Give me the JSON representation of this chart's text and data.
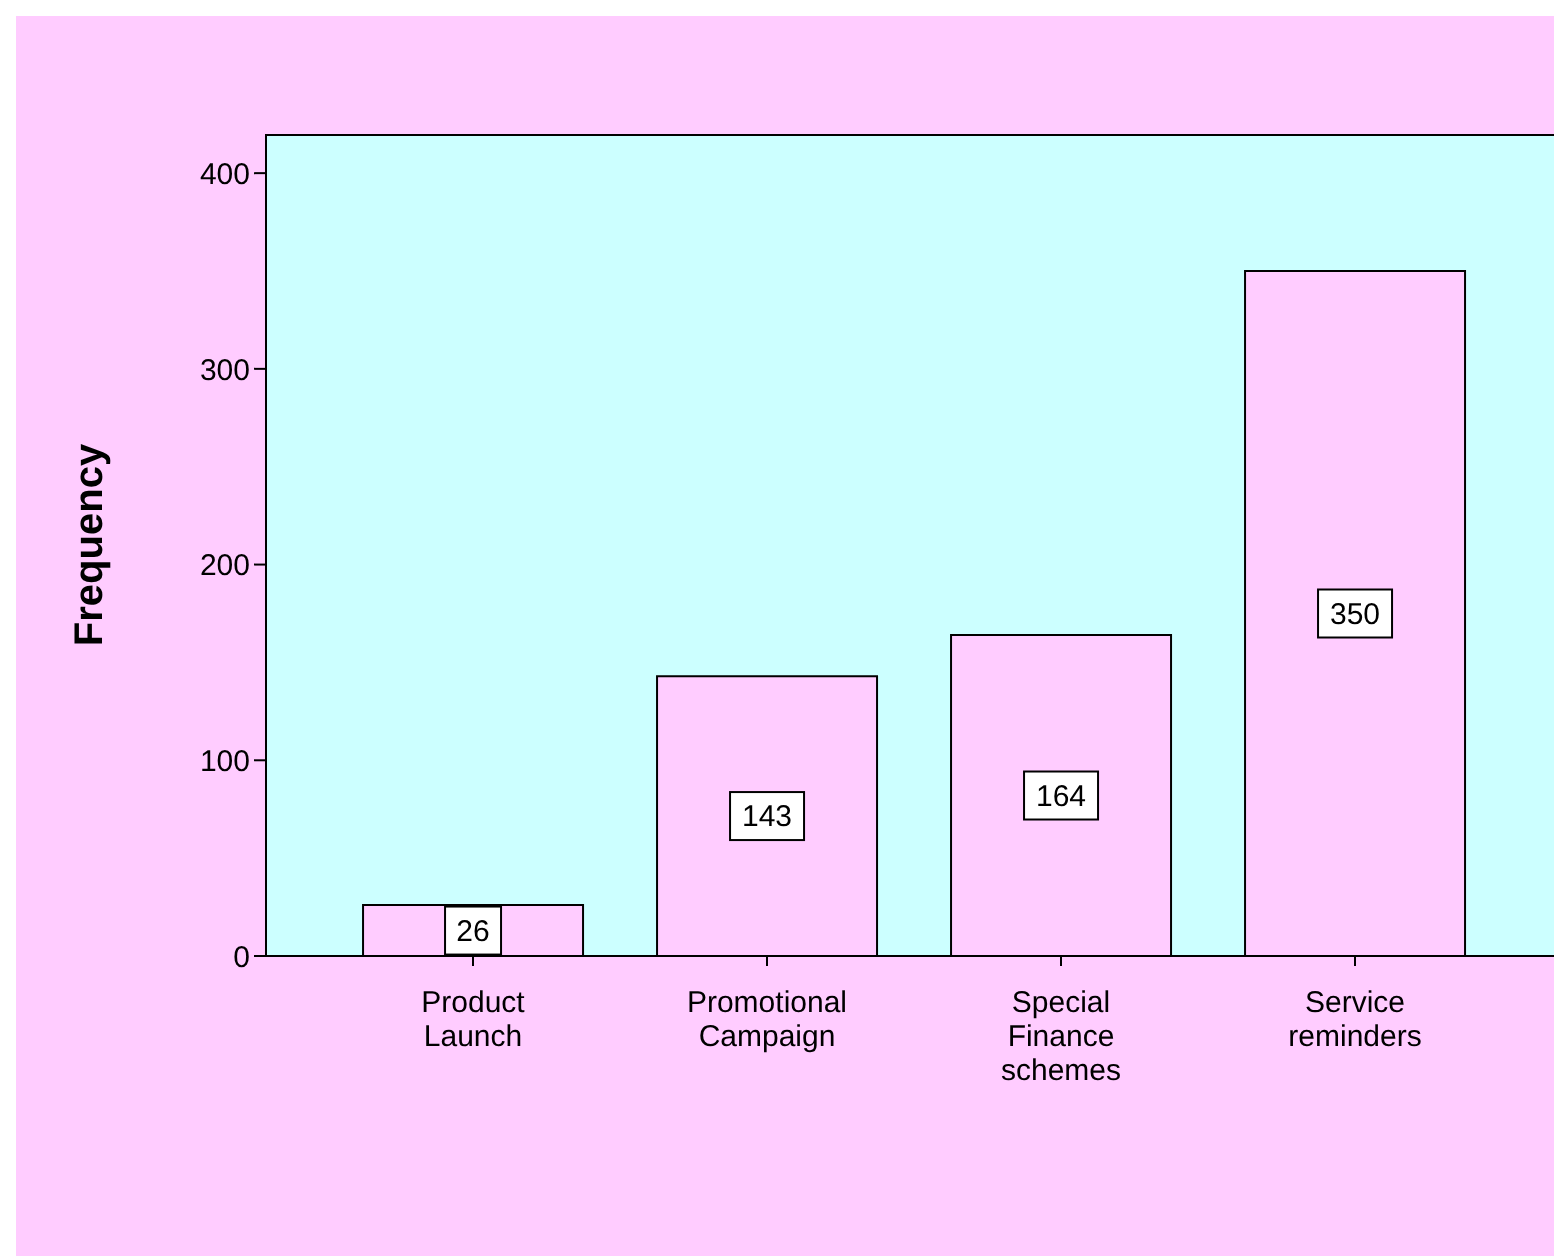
{
  "chart_data": {
    "type": "bar",
    "ylabel": "Frequency",
    "categories": [
      "Product Launch",
      "Promotional Campaign",
      "Special Finance schemes",
      "Service reminders"
    ],
    "values": [
      26,
      143,
      164,
      350
    ],
    "color": "#ffccff",
    "ylim": [
      0,
      420
    ],
    "yticks": [
      0,
      100,
      200,
      300,
      400
    ],
    "data_labels": true
  }
}
